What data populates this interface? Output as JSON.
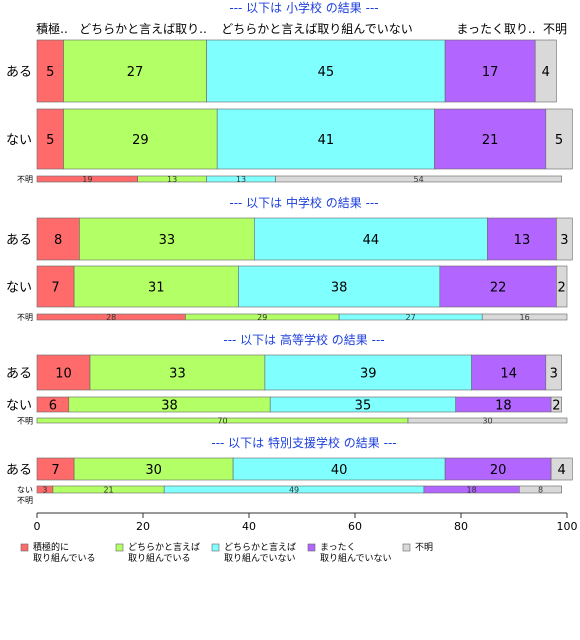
{
  "chart_data": {
    "type": "bar",
    "orientation": "horizontal",
    "stacked": true,
    "xlim": [
      0,
      100
    ],
    "x_ticks": [
      "0",
      "20",
      "40",
      "60",
      "80",
      "100"
    ],
    "header_labels": [
      "積極..",
      "どちらかと言えば取り..",
      "どちらかと言えば取り組んでいない",
      "まったく取り..",
      "不明"
    ],
    "legend": [
      {
        "name": "積極的に\n取り組んでいる",
        "color": "#FF6B6B"
      },
      {
        "name": "どちらかと言えば\n取り組んでいる",
        "color": "#B3FF66"
      },
      {
        "name": "どちらかと言えば\n取り組んでいない",
        "color": "#80FFFF"
      },
      {
        "name": "まったく\n取り組んでいない",
        "color": "#B266FF"
      },
      {
        "name": "不明",
        "color": "#D9D9D9"
      }
    ],
    "legend_position": "bottom",
    "panels": [
      {
        "title": "--- 以下は 小学校 の結果 ---",
        "rows": [
          {
            "label": "ある",
            "values": [
              5,
              27,
              45,
              17,
              4
            ]
          },
          {
            "label": "ない",
            "values": [
              5,
              29,
              41,
              21,
              5
            ]
          },
          {
            "label": "不明",
            "values": [
              19,
              13,
              13,
              0,
              54
            ]
          }
        ]
      },
      {
        "title": "--- 以下は 中学校 の結果 ---",
        "rows": [
          {
            "label": "ある",
            "values": [
              8,
              33,
              44,
              13,
              3
            ]
          },
          {
            "label": "ない",
            "values": [
              7,
              31,
              38,
              22,
              2
            ]
          },
          {
            "label": "不明",
            "values": [
              28,
              29,
              27,
              0,
              16
            ]
          }
        ]
      },
      {
        "title": "--- 以下は 高等学校 の結果 ---",
        "rows": [
          {
            "label": "ある",
            "values": [
              10,
              33,
              39,
              14,
              3
            ]
          },
          {
            "label": "ない",
            "values": [
              6,
              38,
              35,
              18,
              2
            ]
          },
          {
            "label": "不明",
            "values": [
              0,
              70,
              0,
              0,
              30
            ]
          }
        ]
      },
      {
        "title": "--- 以下は 特別支援学校 の結果 ---",
        "rows": [
          {
            "label": "ある",
            "values": [
              7,
              30,
              40,
              20,
              4
            ]
          },
          {
            "label": "ない",
            "values": [
              3,
              21,
              49,
              18,
              8
            ]
          },
          {
            "label": "不明",
            "values": [
              0,
              0,
              0,
              0,
              0
            ]
          }
        ]
      }
    ]
  }
}
